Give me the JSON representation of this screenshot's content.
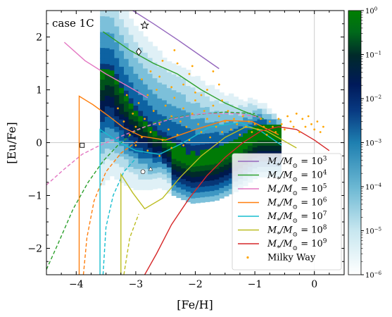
{
  "chart_data": {
    "type": "scatter",
    "title": "",
    "annotation": "case 1C",
    "xlabel": "[Fe/H]",
    "ylabel": "[Eu/Fe]",
    "xlim": [
      -4.5,
      0.5
    ],
    "ylim": [
      -2.5,
      2.5
    ],
    "x_ticks": [
      -4,
      -3,
      -2,
      -1,
      0
    ],
    "x_tick_labels": [
      "−4",
      "−3",
      "−2",
      "−1",
      "0"
    ],
    "y_ticks": [
      -2,
      -1,
      0,
      1,
      2
    ],
    "y_tick_labels": [
      "−2",
      "−1",
      "0",
      "1",
      "2"
    ],
    "colorbar": {
      "scale": "log",
      "range": [
        1e-06,
        1
      ],
      "colormap": "ocean_r",
      "tick_labels": [
        {
          "base": "10",
          "exp": "0",
          "value": 0
        },
        {
          "base": "10",
          "exp": "−1",
          "value": -1
        },
        {
          "base": "10",
          "exp": "−2",
          "value": -2
        },
        {
          "base": "10",
          "exp": "−3",
          "value": -3
        },
        {
          "base": "10",
          "exp": "−4",
          "value": -4
        },
        {
          "base": "10",
          "exp": "−5",
          "value": -5
        },
        {
          "base": "10",
          "exp": "−6",
          "value": -6
        }
      ]
    },
    "reference_lines": {
      "x": -0.0,
      "y": 0.0
    },
    "legend_position": "lower-right",
    "series": [
      {
        "name": "M*/M⊙ = 10^3",
        "base": "M",
        "sub": "*",
        "mid": "/",
        "base2": "M",
        "sub2": "⊙",
        "eq": " = 10",
        "exp": "3",
        "color": "#9467bd",
        "solid": [
          [
            -3.05,
            2.5
          ],
          [
            -2.7,
            2.25
          ],
          [
            -2.3,
            1.95
          ],
          [
            -1.6,
            1.4
          ]
        ],
        "dashed": []
      },
      {
        "name": "M*/M⊙ = 10^4",
        "base": "M",
        "sub": "*",
        "mid": "/",
        "base2": "M",
        "sub2": "⊙",
        "eq": " = 10",
        "exp": "4",
        "color": "#2ca02c",
        "solid": [
          [
            -3.55,
            2.1
          ],
          [
            -3.1,
            1.75
          ],
          [
            -2.7,
            1.5
          ],
          [
            -2.3,
            1.3
          ],
          [
            -1.9,
            1.0
          ],
          [
            -1.5,
            0.75
          ],
          [
            -1.2,
            0.6
          ],
          [
            -0.85,
            0.45
          ]
        ],
        "dashed": [
          [
            -4.5,
            -2.4
          ],
          [
            -4.3,
            -1.9
          ],
          [
            -4.05,
            -1.25
          ],
          [
            -3.8,
            -0.75
          ],
          [
            -3.55,
            -0.35
          ],
          [
            -3.3,
            -0.05
          ],
          [
            -3.0,
            0.22
          ],
          [
            -2.6,
            0.42
          ],
          [
            -2.1,
            0.52
          ],
          [
            -1.5,
            0.58
          ],
          [
            -1.0,
            0.55
          ]
        ]
      },
      {
        "name": "M*/M⊙ = 10^5",
        "base": "M",
        "sub": "*",
        "mid": "/",
        "base2": "M",
        "sub2": "⊙",
        "eq": " = 10",
        "exp": "5",
        "color": "#e377c2",
        "solid": [
          [
            -4.2,
            1.9
          ],
          [
            -3.85,
            1.55
          ],
          [
            -3.5,
            1.3
          ],
          [
            -3.15,
            1.08
          ],
          [
            -2.8,
            0.85
          ]
        ],
        "dashed": [
          [
            -4.5,
            -0.8
          ],
          [
            -4.2,
            -0.5
          ],
          [
            -3.9,
            -0.22
          ],
          [
            -3.6,
            -0.05
          ],
          [
            -3.25,
            0.12
          ],
          [
            -2.85,
            0.3
          ],
          [
            -2.4,
            0.45
          ],
          [
            -1.9,
            0.55
          ],
          [
            -1.3,
            0.55
          ],
          [
            -0.9,
            0.48
          ]
        ]
      },
      {
        "name": "M*/M⊙ = 10^6",
        "base": "M",
        "sub": "*",
        "mid": "/",
        "base2": "M",
        "sub2": "⊙",
        "eq": " = 10",
        "exp": "6",
        "color": "#ff7f0e",
        "solid": [
          [
            -3.95,
            -2.5
          ],
          [
            -3.95,
            0.88
          ],
          [
            -3.72,
            0.72
          ],
          [
            -3.45,
            0.5
          ],
          [
            -3.2,
            0.28
          ],
          [
            -2.9,
            0.12
          ],
          [
            -2.5,
            0.05
          ],
          [
            -2.0,
            0.25
          ],
          [
            -1.5,
            0.42
          ],
          [
            -1.05,
            0.4
          ],
          [
            -0.6,
            0.15
          ]
        ],
        "dashed": [
          [
            -3.88,
            -2.5
          ],
          [
            -3.82,
            -1.8
          ],
          [
            -3.7,
            -1.1
          ],
          [
            -3.5,
            -0.55
          ],
          [
            -3.25,
            -0.2
          ],
          [
            -2.95,
            0.05
          ]
        ]
      },
      {
        "name": "M*/M⊙ = 10^7",
        "base": "M",
        "sub": "*",
        "mid": "/",
        "base2": "M",
        "sub2": "⊙",
        "eq": " = 10",
        "exp": "7",
        "color": "#17becf",
        "solid": [
          [
            -3.6,
            -2.5
          ],
          [
            -3.6,
            0.25
          ],
          [
            -3.3,
            0.02
          ],
          [
            -3.0,
            -0.15
          ],
          [
            -2.6,
            -0.22
          ],
          [
            -2.2,
            0.0
          ],
          [
            -1.75,
            0.3
          ],
          [
            -1.25,
            0.38
          ],
          [
            -0.9,
            0.22
          ],
          [
            -0.55,
            -0.05
          ]
        ],
        "dashed": [
          [
            -3.55,
            -2.5
          ],
          [
            -3.5,
            -1.6
          ],
          [
            -3.38,
            -1.0
          ],
          [
            -3.2,
            -0.55
          ],
          [
            -3.0,
            -0.3
          ]
        ]
      },
      {
        "name": "M*/M⊙ = 10^8",
        "base": "M",
        "sub": "*",
        "mid": "/",
        "base2": "M",
        "sub2": "⊙",
        "eq": " = 10",
        "exp": "8",
        "color": "#bcbd22",
        "solid": [
          [
            -3.25,
            -2.5
          ],
          [
            -3.25,
            -0.6
          ],
          [
            -3.05,
            -0.95
          ],
          [
            -2.85,
            -1.25
          ],
          [
            -2.55,
            -1.05
          ],
          [
            -2.25,
            -0.65
          ],
          [
            -1.9,
            -0.25
          ],
          [
            -1.5,
            0.1
          ],
          [
            -1.15,
            0.3
          ],
          [
            -0.8,
            0.22
          ],
          [
            -0.3,
            -0.1
          ]
        ],
        "dashed": [
          [
            -3.2,
            -2.5
          ],
          [
            -3.1,
            -1.8
          ],
          [
            -2.95,
            -1.35
          ]
        ]
      },
      {
        "name": "M*/M⊙ = 10^9",
        "base": "M",
        "sub": "*",
        "mid": "/",
        "base2": "M",
        "sub2": "⊙",
        "eq": " = 10",
        "exp": "9",
        "color": "#d62728",
        "solid": [
          [
            -2.85,
            -2.5
          ],
          [
            -2.65,
            -2.1
          ],
          [
            -2.4,
            -1.55
          ],
          [
            -2.1,
            -1.05
          ],
          [
            -1.8,
            -0.62
          ],
          [
            -1.5,
            -0.28
          ],
          [
            -1.2,
            0.0
          ],
          [
            -0.9,
            0.22
          ],
          [
            -0.6,
            0.3
          ],
          [
            -0.3,
            0.25
          ],
          [
            0.0,
            0.05
          ],
          [
            0.25,
            -0.15
          ]
        ],
        "dashed": []
      },
      {
        "name": "Milky Way",
        "color": "#ffa500",
        "kind": "points"
      }
    ],
    "markers": [
      {
        "shape": "star",
        "x": -2.85,
        "y": 2.22
      },
      {
        "shape": "diamond",
        "x": -2.95,
        "y": 1.72
      },
      {
        "shape": "square",
        "x": -3.9,
        "y": -0.05
      },
      {
        "shape": "circle",
        "x": -2.88,
        "y": -0.55
      },
      {
        "shape": "triangle",
        "x": -2.75,
        "y": -0.5
      }
    ],
    "density": {
      "description_levels": "log10 density, from -6 to 0",
      "ridge": [
        [
          -3.45,
          1.3
        ],
        [
          -3.25,
          0.9
        ],
        [
          -3.05,
          0.55
        ],
        [
          -2.8,
          0.25
        ],
        [
          -2.5,
          -0.05
        ],
        [
          -2.1,
          -0.25
        ],
        [
          -1.7,
          -0.2
        ],
        [
          -1.3,
          0.0
        ],
        [
          -1.0,
          0.25
        ]
      ]
    },
    "milky_way_points": [
      [
        -3.2,
        0.4
      ],
      [
        -3.1,
        0.15
      ],
      [
        -3.05,
        0.55
      ],
      [
        -3.0,
        0.3
      ],
      [
        -2.95,
        0.75
      ],
      [
        -2.9,
        0.1
      ],
      [
        -2.85,
        0.45
      ],
      [
        -2.8,
        0.9
      ],
      [
        -2.75,
        0.2
      ],
      [
        -2.7,
        0.6
      ],
      [
        -2.65,
        1.0
      ],
      [
        -2.6,
        0.35
      ],
      [
        -2.55,
        0.05
      ],
      [
        -2.5,
        0.7
      ],
      [
        -2.45,
        0.25
      ],
      [
        -2.4,
        0.5
      ],
      [
        -2.35,
        0.85
      ],
      [
        -2.3,
        0.15
      ],
      [
        -2.25,
        0.4
      ],
      [
        -2.2,
        0.65
      ],
      [
        -2.15,
        0.3
      ],
      [
        -2.1,
        0.05
      ],
      [
        -2.05,
        0.55
      ],
      [
        -2.0,
        0.8
      ],
      [
        -1.95,
        0.35
      ],
      [
        -1.9,
        0.2
      ],
      [
        -1.85,
        0.6
      ],
      [
        -1.8,
        0.45
      ],
      [
        -1.75,
        0.1
      ],
      [
        -1.7,
        0.7
      ],
      [
        -1.65,
        0.3
      ],
      [
        -1.6,
        0.5
      ],
      [
        -1.55,
        0.2
      ],
      [
        -1.5,
        0.4
      ],
      [
        -1.45,
        0.6
      ],
      [
        -1.4,
        0.25
      ],
      [
        -1.35,
        0.45
      ],
      [
        -1.3,
        0.35
      ],
      [
        -1.25,
        0.15
      ],
      [
        -1.2,
        0.5
      ],
      [
        -1.15,
        0.3
      ],
      [
        -1.1,
        0.4
      ],
      [
        -1.05,
        0.2
      ],
      [
        -1.0,
        0.35
      ],
      [
        -0.95,
        0.25
      ],
      [
        -0.9,
        0.45
      ],
      [
        -0.85,
        0.3
      ],
      [
        -0.8,
        0.15
      ],
      [
        -0.75,
        0.4
      ],
      [
        -0.7,
        0.3
      ],
      [
        -0.65,
        0.2
      ],
      [
        -0.6,
        0.45
      ],
      [
        -0.55,
        0.35
      ],
      [
        -0.5,
        0.25
      ],
      [
        -0.45,
        0.5
      ],
      [
        -0.4,
        0.4
      ],
      [
        -0.35,
        0.3
      ],
      [
        -0.3,
        0.55
      ],
      [
        -0.25,
        0.2
      ],
      [
        -0.2,
        0.45
      ],
      [
        -0.15,
        0.3
      ],
      [
        -0.1,
        0.5
      ],
      [
        -0.05,
        0.35
      ],
      [
        0.0,
        0.25
      ],
      [
        0.05,
        0.4
      ],
      [
        0.1,
        0.2
      ],
      [
        0.15,
        0.3
      ],
      [
        -2.6,
        1.25
      ],
      [
        -2.4,
        1.05
      ],
      [
        -2.2,
        1.1
      ],
      [
        -2.0,
        0.95
      ],
      [
        -1.8,
        1.0
      ],
      [
        -1.6,
        1.1
      ],
      [
        -2.3,
        1.5
      ],
      [
        -2.05,
        1.45
      ],
      [
        -1.7,
        1.35
      ],
      [
        -3.0,
        -0.05
      ],
      [
        -2.8,
        -0.15
      ],
      [
        -2.6,
        -0.25
      ],
      [
        -2.4,
        -0.1
      ],
      [
        -2.2,
        -0.05
      ],
      [
        -3.3,
        0.65
      ],
      [
        -3.15,
        0.9
      ],
      [
        -2.9,
        1.2
      ],
      [
        -2.75,
        1.35
      ],
      [
        -2.55,
        1.55
      ],
      [
        -2.35,
        1.75
      ],
      [
        -2.1,
        1.3
      ],
      [
        -1.9,
        0.9
      ],
      [
        -1.55,
        0.8
      ]
    ]
  }
}
